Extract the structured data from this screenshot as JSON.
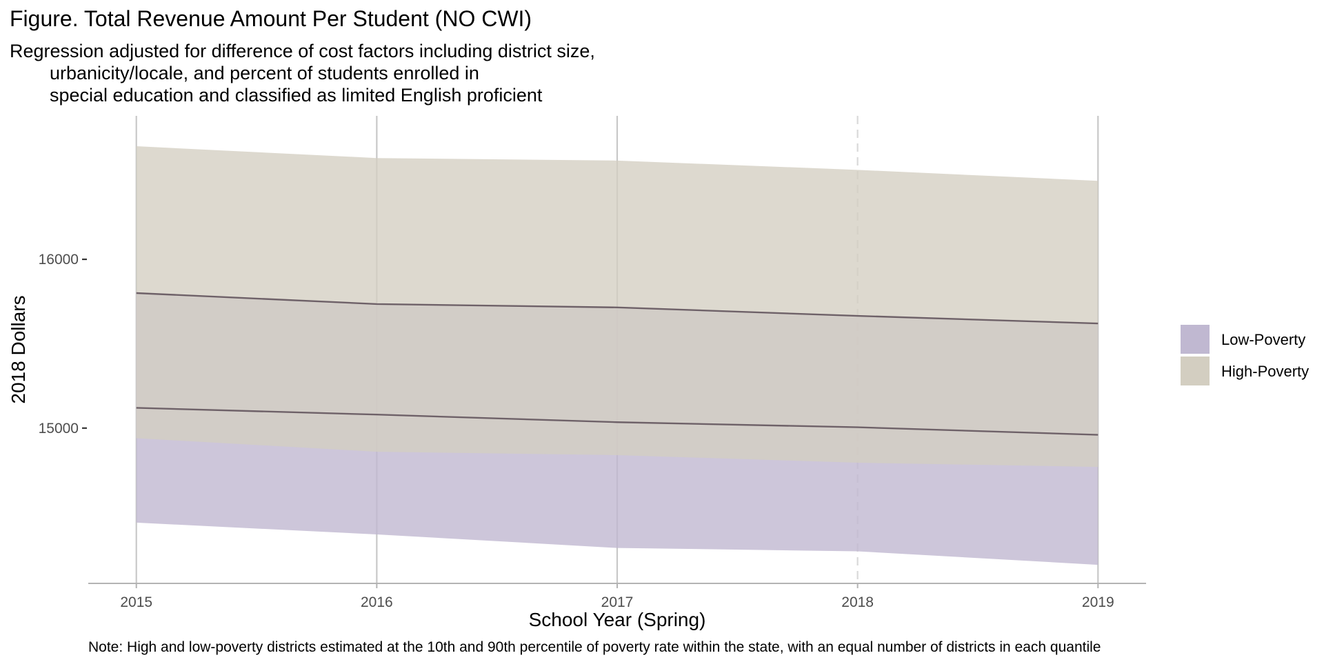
{
  "chart_data": {
    "type": "area",
    "title": "Figure. Total Revenue Amount Per Student (NO CWI)",
    "subtitle_lines": [
      "Regression adjusted for difference of cost factors including district size,",
      "urbanicity/locale, and percent of students enrolled in",
      "special education and classified as limited English proficient"
    ],
    "xlabel": "School Year (Spring)",
    "ylabel": "2018 Dollars",
    "caption": "Note: High and low-poverty districts estimated at the 10th and 90th percentile of poverty rate within the state, with an equal number of districts in each quantile",
    "x": [
      2015,
      2016,
      2017,
      2018,
      2019
    ],
    "x_tick_labels": [
      "2015",
      "2016",
      "2017",
      "2018",
      "2019"
    ],
    "y_ticks": [
      15000,
      16000
    ],
    "y_tick_labels": [
      "15000",
      "16000"
    ],
    "xlim": [
      2014.8,
      2019.2
    ],
    "ylim": [
      14080,
      16850
    ],
    "grid": true,
    "dashed_reference_x": 2018,
    "legend_position": "right",
    "series": [
      {
        "name": "Low-Poverty",
        "color": "#c0b8d1",
        "line": [
          15120,
          15080,
          15035,
          15005,
          14960
        ],
        "lower": [
          14440,
          14370,
          14290,
          14270,
          14190
        ],
        "upper": [
          15800,
          15735,
          15715,
          15665,
          15620
        ]
      },
      {
        "name": "High-Poverty",
        "color": "#d3cec1",
        "line": [
          15800,
          15735,
          15715,
          15665,
          15620
        ],
        "lower": [
          14940,
          14860,
          14840,
          14795,
          14770
        ],
        "upper": [
          16670,
          16600,
          16585,
          16530,
          16465
        ]
      }
    ]
  }
}
